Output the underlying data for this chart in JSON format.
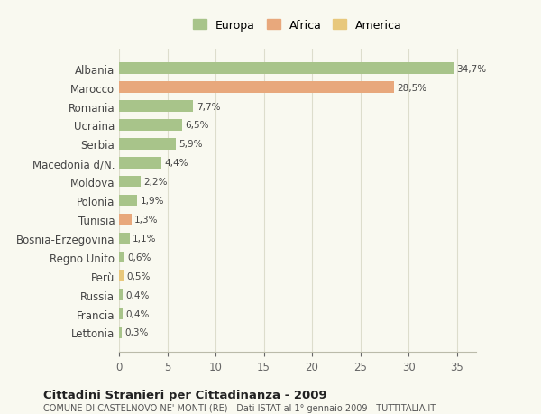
{
  "categories": [
    "Albania",
    "Marocco",
    "Romania",
    "Ucraina",
    "Serbia",
    "Macedonia d/N.",
    "Moldova",
    "Polonia",
    "Tunisia",
    "Bosnia-Erzegovina",
    "Regno Unito",
    "Perù",
    "Russia",
    "Francia",
    "Lettonia"
  ],
  "values": [
    34.7,
    28.5,
    7.7,
    6.5,
    5.9,
    4.4,
    2.2,
    1.9,
    1.3,
    1.1,
    0.6,
    0.5,
    0.4,
    0.4,
    0.3
  ],
  "labels": [
    "34,7%",
    "28,5%",
    "7,7%",
    "6,5%",
    "5,9%",
    "4,4%",
    "2,2%",
    "1,9%",
    "1,3%",
    "1,1%",
    "0,6%",
    "0,5%",
    "0,4%",
    "0,4%",
    "0,3%"
  ],
  "colors": [
    "#a8c48a",
    "#e8a87c",
    "#a8c48a",
    "#a8c48a",
    "#a8c48a",
    "#a8c48a",
    "#a8c48a",
    "#a8c48a",
    "#e8a87c",
    "#a8c48a",
    "#a8c48a",
    "#e8c87c",
    "#a8c48a",
    "#a8c48a",
    "#a8c48a"
  ],
  "legend_labels": [
    "Europa",
    "Africa",
    "America"
  ],
  "legend_colors": [
    "#a8c48a",
    "#e8a87c",
    "#e8c87c"
  ],
  "title": "Cittadini Stranieri per Cittadinanza - 2009",
  "subtitle": "COMUNE DI CASTELNOVO NE' MONTI (RE) - Dati ISTAT al 1° gennaio 2009 - TUTTITALIA.IT",
  "xlim": [
    0,
    37
  ],
  "xticks": [
    0,
    5,
    10,
    15,
    20,
    25,
    30,
    35
  ],
  "bg_color": "#f9f9f0",
  "plot_bg_color": "#f9f9f0",
  "grid_color": "#ddddcc"
}
